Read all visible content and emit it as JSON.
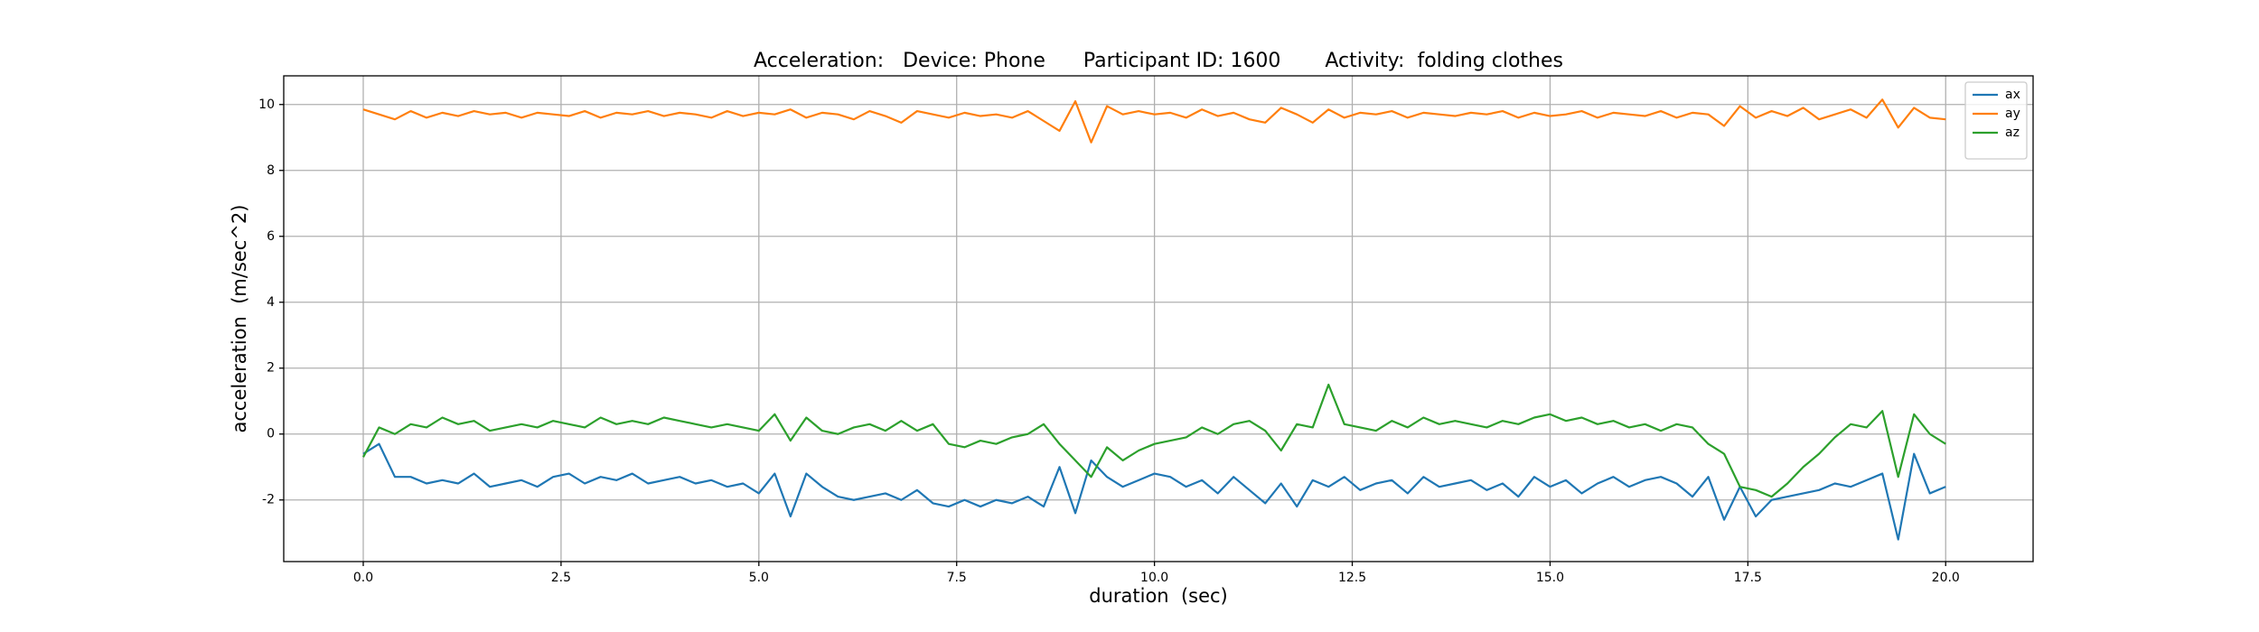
{
  "chart_data": {
    "type": "line",
    "title": "Acceleration:   Device: Phone      Participant ID: 1600       Activity:  folding clothes",
    "xlabel": "duration  (sec)",
    "ylabel": "acceleration  (m/sec^2)",
    "x": [
      0,
      0.2,
      0.4,
      0.6,
      0.8,
      1,
      1.2,
      1.4,
      1.6,
      1.8,
      2,
      2.2,
      2.4,
      2.6,
      2.8,
      3,
      3.2,
      3.4,
      3.6,
      3.8,
      4,
      4.2,
      4.4,
      4.6,
      4.8,
      5,
      5.2,
      5.4,
      5.6,
      5.8,
      6,
      6.2,
      6.4,
      6.6,
      6.8,
      7,
      7.2,
      7.4,
      7.6,
      7.8,
      8,
      8.2,
      8.4,
      8.6,
      8.8,
      9,
      9.2,
      9.4,
      9.6,
      9.8,
      10,
      10.2,
      10.4,
      10.6,
      10.8,
      11,
      11.2,
      11.4,
      11.6,
      11.8,
      12,
      12.2,
      12.4,
      12.6,
      12.8,
      13,
      13.2,
      13.4,
      13.6,
      13.8,
      14,
      14.2,
      14.4,
      14.6,
      14.8,
      15,
      15.2,
      15.4,
      15.6,
      15.8,
      16,
      16.2,
      16.4,
      16.6,
      16.8,
      17,
      17.2,
      17.4,
      17.6,
      17.8,
      18,
      18.2,
      18.4,
      18.6,
      18.8,
      19,
      19.2,
      19.4,
      19.6,
      19.8,
      20
    ],
    "series": [
      {
        "name": "ax",
        "color": "#1f77b4",
        "values": [
          -0.6,
          -0.3,
          -1.3,
          -1.3,
          -1.5,
          -1.4,
          -1.5,
          -1.2,
          -1.6,
          -1.5,
          -1.4,
          -1.6,
          -1.3,
          -1.2,
          -1.5,
          -1.3,
          -1.4,
          -1.2,
          -1.5,
          -1.4,
          -1.3,
          -1.5,
          -1.4,
          -1.6,
          -1.5,
          -1.8,
          -1.2,
          -2.5,
          -1.2,
          -1.6,
          -1.9,
          -2.0,
          -1.9,
          -1.8,
          -2.0,
          -1.7,
          -2.1,
          -2.2,
          -2.0,
          -2.2,
          -2.0,
          -2.1,
          -1.9,
          -2.2,
          -1.0,
          -2.4,
          -0.8,
          -1.3,
          -1.6,
          -1.4,
          -1.2,
          -1.3,
          -1.6,
          -1.4,
          -1.8,
          -1.3,
          -1.7,
          -2.1,
          -1.5,
          -2.2,
          -1.4,
          -1.6,
          -1.3,
          -1.7,
          -1.5,
          -1.4,
          -1.8,
          -1.3,
          -1.6,
          -1.5,
          -1.4,
          -1.7,
          -1.5,
          -1.9,
          -1.3,
          -1.6,
          -1.4,
          -1.8,
          -1.5,
          -1.3,
          -1.6,
          -1.4,
          -1.3,
          -1.5,
          -1.9,
          -1.3,
          -2.6,
          -1.6,
          -2.5,
          -2.0,
          -1.9,
          -1.8,
          -1.7,
          -1.5,
          -1.6,
          -1.4,
          -1.2,
          -3.2,
          -0.6,
          -1.8,
          -1.6
        ]
      },
      {
        "name": "ay",
        "color": "#ff7f0e",
        "values": [
          9.85,
          9.7,
          9.55,
          9.8,
          9.6,
          9.75,
          9.65,
          9.8,
          9.7,
          9.75,
          9.6,
          9.75,
          9.7,
          9.65,
          9.8,
          9.6,
          9.75,
          9.7,
          9.8,
          9.65,
          9.75,
          9.7,
          9.6,
          9.8,
          9.65,
          9.75,
          9.7,
          9.85,
          9.6,
          9.75,
          9.7,
          9.55,
          9.8,
          9.65,
          9.45,
          9.8,
          9.7,
          9.6,
          9.75,
          9.65,
          9.7,
          9.6,
          9.8,
          9.5,
          9.2,
          10.1,
          8.85,
          9.95,
          9.7,
          9.8,
          9.7,
          9.75,
          9.6,
          9.85,
          9.65,
          9.75,
          9.55,
          9.45,
          9.9,
          9.7,
          9.45,
          9.85,
          9.6,
          9.75,
          9.7,
          9.8,
          9.6,
          9.75,
          9.7,
          9.65,
          9.75,
          9.7,
          9.8,
          9.6,
          9.75,
          9.65,
          9.7,
          9.8,
          9.6,
          9.75,
          9.7,
          9.65,
          9.8,
          9.6,
          9.75,
          9.7,
          9.35,
          9.95,
          9.6,
          9.8,
          9.65,
          9.9,
          9.55,
          9.7,
          9.85,
          9.6,
          10.15,
          9.3,
          9.9,
          9.6,
          9.55
        ]
      },
      {
        "name": "az",
        "color": "#2ca02c",
        "values": [
          -0.7,
          0.2,
          0.0,
          0.3,
          0.2,
          0.5,
          0.3,
          0.4,
          0.1,
          0.2,
          0.3,
          0.2,
          0.4,
          0.3,
          0.2,
          0.5,
          0.3,
          0.4,
          0.3,
          0.5,
          0.4,
          0.3,
          0.2,
          0.3,
          0.2,
          0.1,
          0.6,
          -0.2,
          0.5,
          0.1,
          0.0,
          0.2,
          0.3,
          0.1,
          0.4,
          0.1,
          0.3,
          -0.3,
          -0.4,
          -0.2,
          -0.3,
          -0.1,
          0.0,
          0.3,
          -0.3,
          -0.8,
          -1.3,
          -0.4,
          -0.8,
          -0.5,
          -0.3,
          -0.2,
          -0.1,
          0.2,
          0.0,
          0.3,
          0.4,
          0.1,
          -0.5,
          0.3,
          0.2,
          1.5,
          0.3,
          0.2,
          0.1,
          0.4,
          0.2,
          0.5,
          0.3,
          0.4,
          0.3,
          0.2,
          0.4,
          0.3,
          0.5,
          0.6,
          0.4,
          0.5,
          0.3,
          0.4,
          0.2,
          0.3,
          0.1,
          0.3,
          0.2,
          -0.3,
          -0.6,
          -1.6,
          -1.7,
          -1.9,
          -1.5,
          -1.0,
          -0.6,
          -0.1,
          0.3,
          0.2,
          0.7,
          -1.3,
          0.6,
          0.0,
          -0.3
        ]
      }
    ],
    "xlim": [
      -1.005,
      21.105
    ],
    "ylim": [
      -3.87,
      10.87
    ],
    "xticks": [
      {
        "value": 0,
        "label": "0.0"
      },
      2.5,
      {
        "value": 5,
        "label": "5.0"
      },
      7.5,
      {
        "value": 10,
        "label": "10.0"
      },
      12.5,
      {
        "value": 15,
        "label": "15.0"
      },
      17.5,
      {
        "value": 20,
        "label": "20.0"
      }
    ],
    "yticks": [
      -2,
      0,
      2,
      4,
      6,
      8,
      10
    ],
    "grid": true,
    "legend": "upper right"
  }
}
